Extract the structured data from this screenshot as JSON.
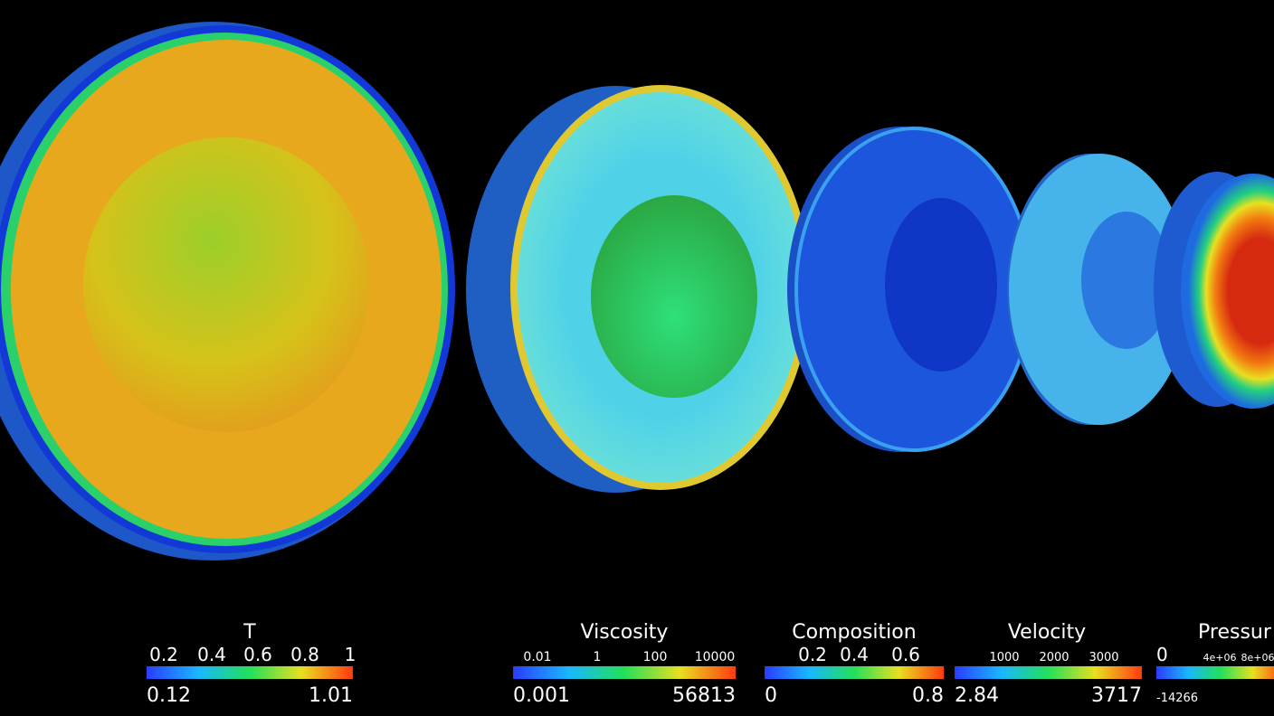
{
  "colorbars": [
    {
      "title": "T",
      "ticks": [
        "0.2",
        "0.4",
        "0.6",
        "0.8",
        "1"
      ],
      "min": "0.12",
      "max": "1.01"
    },
    {
      "title": "Viscosity",
      "ticks": [
        "0.01",
        "1",
        "100",
        "10000"
      ],
      "min": "0.001",
      "max": "56813"
    },
    {
      "title": "Composition",
      "ticks": [
        "0.2",
        "0.4",
        "0.6"
      ],
      "min": "0",
      "max": "0.8"
    },
    {
      "title": "Velocity",
      "ticks": [
        "1000",
        "2000",
        "3000"
      ],
      "min": "2.84",
      "max": "3717"
    },
    {
      "title": "Pressur",
      "ticks": [
        "0",
        "4e+06",
        "8e+06"
      ],
      "min": "-14266"
    }
  ]
}
